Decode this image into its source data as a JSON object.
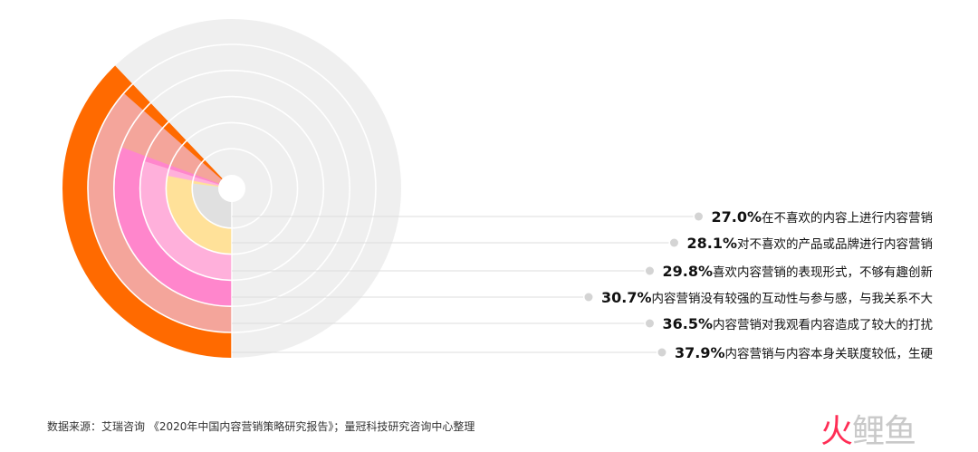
{
  "chart_data": {
    "type": "radial-bar",
    "value_unit": "%",
    "full_scale": 100,
    "series": [
      {
        "label": "在不喜欢的内容上进行内容营销",
        "value": 27.0,
        "value_text": "27.0%",
        "color": "#e0e0e0"
      },
      {
        "label": "对不喜欢的产品或品牌进行内容营销",
        "value": 28.1,
        "value_text": "28.1%",
        "color": "#ffe199"
      },
      {
        "label": "喜欢内容营销的表现形式，不够有趣创新",
        "value": 29.8,
        "value_text": "29.8%",
        "color": "#ffb0db"
      },
      {
        "label": "内容营销没有较强的互动性与参与感，与我关系不大",
        "value": 30.7,
        "value_text": "30.7%",
        "color": "#ff86cc"
      },
      {
        "label": "内容营销对我观看内容造成了较大的打扰",
        "value": 36.5,
        "value_text": "36.5%",
        "color": "#f4a59b"
      },
      {
        "label": "内容营销与内容本身关联度较低，生硬",
        "value": 37.9,
        "value_text": "37.9%",
        "color": "#ff6a00"
      }
    ],
    "track_color": "#efefef",
    "legend_placement": "right",
    "leader_line_color": "#dddddd",
    "dot_color": "#d4d4d4"
  },
  "source_note": "数据来源：艾瑞咨询 《2020年中国内容营销策略研究报告》；量冠科技研究咨询中心整理",
  "watermark": {
    "first": "火",
    "rest": "鲤鱼"
  }
}
